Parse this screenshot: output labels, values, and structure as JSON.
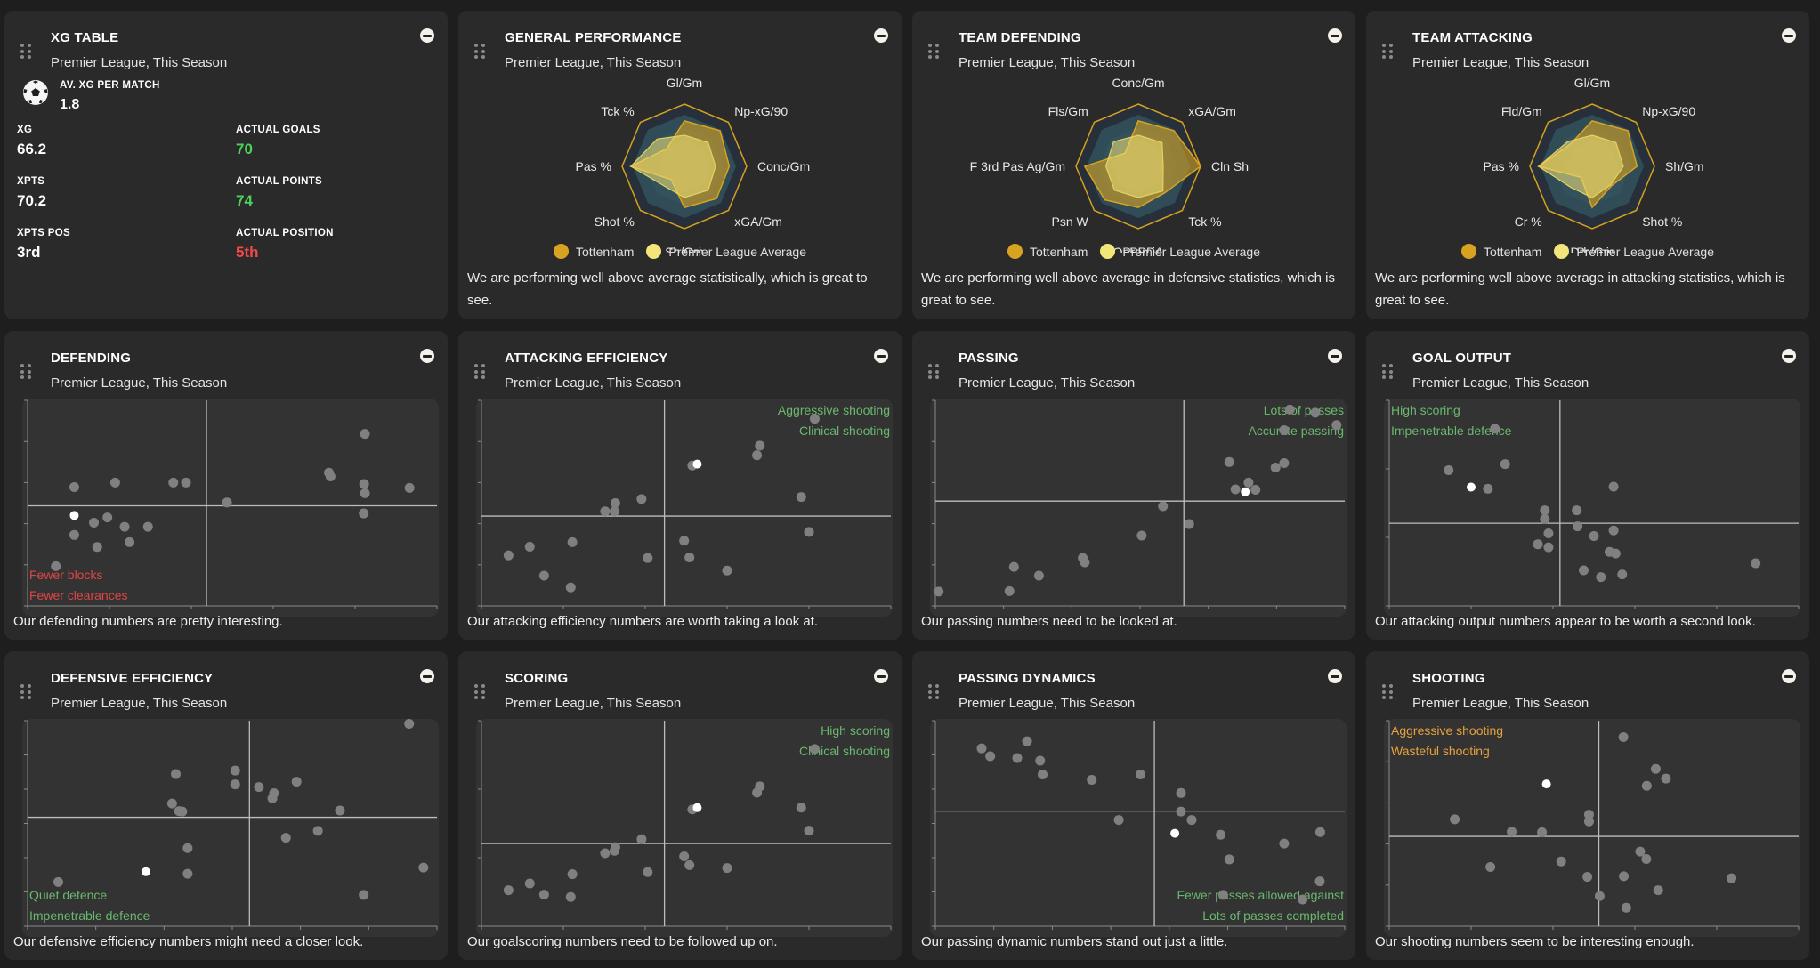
{
  "colors": {
    "team": "#d8a321",
    "average": "#f3e57a",
    "good": "#4cd25a",
    "bad": "#f04a4a",
    "quadrant_good": "#6ab86e",
    "quadrant_bad": "#e04545",
    "quadrant_warn": "#e6a23c",
    "dot": "#808080",
    "highlight_dot": "#ffffff"
  },
  "xg_table": {
    "title": "XG TABLE",
    "subtitle": "Premier League, This Season",
    "icon": "football-icon",
    "av_label": "AV. XG PER MATCH",
    "av_value": "1.8",
    "stats": [
      {
        "label": "XG",
        "value": "66.2",
        "tone": "neutral"
      },
      {
        "label": "ACTUAL GOALS",
        "value": "70",
        "tone": "good"
      },
      {
        "label": "XPTS",
        "value": "70.2",
        "tone": "neutral"
      },
      {
        "label": "ACTUAL POINTS",
        "value": "74",
        "tone": "good"
      },
      {
        "label": "XPTS POS",
        "value": "3rd",
        "tone": "neutral"
      },
      {
        "label": "ACTUAL POSITION",
        "value": "5th",
        "tone": "bad"
      }
    ]
  },
  "radars": [
    {
      "title": "GENERAL PERFORMANCE",
      "subtitle": "Premier League, This Season",
      "axes": [
        "Gl/Gm",
        "Np-xG/90",
        "Conc/Gm",
        "xGA/Gm",
        "Sh/Gm",
        "Shot %",
        "Pas %",
        "Tck %"
      ],
      "team": [
        0.73,
        0.81,
        0.72,
        0.73,
        0.66,
        0.3,
        0.86,
        0.4
      ],
      "average": [
        0.5,
        0.54,
        0.5,
        0.54,
        0.5,
        0.45,
        0.86,
        0.62
      ],
      "legend": [
        "Tottenham",
        "Premier League Average"
      ],
      "description": "We are performing well above average statistically, which is great to see."
    },
    {
      "title": "TEAM DEFENDING",
      "subtitle": "Premier League, This Season",
      "axes": [
        "Conc/Gm",
        "xGA/Gm",
        "Cln Sh",
        "Tck %",
        "OpPPDA",
        "Psn W",
        "F 3rd Pas Ag/Gm",
        "Fls/Gm"
      ],
      "team": [
        0.73,
        0.81,
        1.0,
        0.6,
        0.66,
        0.76,
        0.86,
        0.3
      ],
      "average": [
        0.5,
        0.54,
        0.4,
        0.56,
        0.5,
        0.54,
        0.52,
        0.56
      ],
      "legend": [
        "Tottenham",
        "Premier League Average"
      ],
      "description": "We are performing well above average in defensive statistics, which is great to see."
    },
    {
      "title": "TEAM ATTACKING",
      "subtitle": "Premier League, This Season",
      "axes": [
        "Gl/Gm",
        "Np-xG/90",
        "Sh/Gm",
        "Shot %",
        "Drb/Gm",
        "Cr %",
        "Pas %",
        "Fld/Gm"
      ],
      "team": [
        0.73,
        0.81,
        0.72,
        0.44,
        0.66,
        0.25,
        0.86,
        0.5
      ],
      "average": [
        0.5,
        0.54,
        0.5,
        0.42,
        0.5,
        0.48,
        0.86,
        0.56
      ],
      "legend": [
        "Tottenham",
        "Premier League Average"
      ],
      "description": "We are performing well above average in attacking statistics, which is great to see."
    }
  ],
  "scatters": [
    {
      "title": "DEFENDING",
      "subtitle": "Premier League, This Season",
      "quadrant_labels": [
        "Fewer blocks",
        "Fewer clearances"
      ],
      "quadrant_corner": "bottom-left",
      "quadrant_tone": "bad",
      "xticks": 5,
      "yticks": 5,
      "divider": [
        0.437,
        0.487
      ],
      "points": [
        [
          0.114,
          0.578
        ],
        [
          0.114,
          0.345
        ],
        [
          0.162,
          0.405
        ],
        [
          0.17,
          0.287
        ],
        [
          0.195,
          0.43
        ],
        [
          0.214,
          0.6
        ],
        [
          0.237,
          0.385
        ],
        [
          0.249,
          0.31
        ],
        [
          0.294,
          0.385
        ],
        [
          0.356,
          0.6
        ],
        [
          0.387,
          0.6
        ],
        [
          0.487,
          0.503
        ],
        [
          0.069,
          0.193
        ],
        [
          0.736,
          0.648
        ],
        [
          0.74,
          0.63
        ],
        [
          0.822,
          0.593
        ],
        [
          0.824,
          0.548
        ],
        [
          0.824,
          0.837
        ],
        [
          0.821,
          0.45
        ],
        [
          0.933,
          0.574
        ]
      ],
      "highlight": [
        0.114,
        0.44
      ],
      "description": "Our defending numbers are pretty interesting."
    },
    {
      "title": "ATTACKING EFFICIENCY",
      "subtitle": "Premier League, This Season",
      "quadrant_labels": [
        "Aggressive shooting",
        "Clinical shooting"
      ],
      "quadrant_corner": "top-right",
      "quadrant_tone": "good",
      "xticks": 5,
      "yticks": 5,
      "divider": [
        0.447,
        0.437
      ],
      "points": [
        [
          0.066,
          0.246
        ],
        [
          0.118,
          0.288
        ],
        [
          0.153,
          0.147
        ],
        [
          0.222,
          0.31
        ],
        [
          0.218,
          0.09
        ],
        [
          0.302,
          0.46
        ],
        [
          0.325,
          0.46
        ],
        [
          0.327,
          0.5
        ],
        [
          0.391,
          0.52
        ],
        [
          0.406,
          0.233
        ],
        [
          0.495,
          0.317
        ],
        [
          0.508,
          0.236
        ],
        [
          0.6,
          0.172
        ],
        [
          0.515,
          0.683
        ],
        [
          0.673,
          0.733
        ],
        [
          0.68,
          0.78
        ],
        [
          0.781,
          0.53
        ],
        [
          0.8,
          0.36
        ],
        [
          0.814,
          0.91
        ]
      ],
      "highlight": [
        0.527,
        0.69
      ],
      "description": "Our attacking efficiency numbers are worth taking a look at."
    },
    {
      "title": "PASSING",
      "subtitle": "Premier League, This Season",
      "quadrant_labels": [
        "Lots of passes",
        "Accurate passing"
      ],
      "quadrant_corner": "top-right",
      "quadrant_tone": "good",
      "xticks": 6,
      "yticks": 5,
      "divider": [
        0.607,
        0.51
      ],
      "points": [
        [
          0.008,
          0.07
        ],
        [
          0.181,
          0.072
        ],
        [
          0.192,
          0.19
        ],
        [
          0.253,
          0.147
        ],
        [
          0.36,
          0.233
        ],
        [
          0.365,
          0.212
        ],
        [
          0.504,
          0.342
        ],
        [
          0.556,
          0.485
        ],
        [
          0.62,
          0.398
        ],
        [
          0.718,
          0.7
        ],
        [
          0.733,
          0.567
        ],
        [
          0.765,
          0.6
        ],
        [
          0.782,
          0.565
        ],
        [
          0.831,
          0.673
        ],
        [
          0.852,
          0.695
        ],
        [
          0.852,
          0.855
        ],
        [
          0.866,
          0.955
        ],
        [
          0.928,
          0.94
        ],
        [
          0.98,
          0.88
        ]
      ],
      "highlight": [
        0.757,
        0.555
      ],
      "description": "Our passing numbers need to be looked at."
    },
    {
      "title": "GOAL OUTPUT",
      "subtitle": "Premier League, This Season",
      "quadrant_labels": [
        "High scoring",
        "Impenetrable defence"
      ],
      "quadrant_corner": "top-left",
      "quadrant_tone": "good",
      "xticks": 5,
      "yticks": 3,
      "divider": [
        0.417,
        0.402
      ],
      "points": [
        [
          0.258,
          0.862
        ],
        [
          0.145,
          0.66
        ],
        [
          0.283,
          0.69
        ],
        [
          0.241,
          0.57
        ],
        [
          0.38,
          0.465
        ],
        [
          0.38,
          0.422
        ],
        [
          0.389,
          0.353
        ],
        [
          0.363,
          0.3
        ],
        [
          0.389,
          0.285
        ],
        [
          0.46,
          0.387
        ],
        [
          0.458,
          0.465
        ],
        [
          0.5,
          0.34
        ],
        [
          0.548,
          0.367
        ],
        [
          0.548,
          0.58
        ],
        [
          0.538,
          0.263
        ],
        [
          0.553,
          0.255
        ],
        [
          0.475,
          0.173
        ],
        [
          0.517,
          0.14
        ],
        [
          0.569,
          0.153
        ],
        [
          0.895,
          0.208
        ]
      ],
      "highlight": [
        0.2,
        0.578
      ],
      "description": "Our attacking output numbers appear to be worth a second look."
    },
    {
      "title": "DEFENSIVE EFFICIENCY",
      "subtitle": "Premier League, This Season",
      "quadrant_labels": [
        "Quiet defence",
        "Impenetrable defence"
      ],
      "quadrant_corner": "bottom-left",
      "quadrant_tone": "good",
      "xticks": 6,
      "yticks": 6,
      "divider": [
        0.542,
        0.53
      ],
      "points": [
        [
          0.075,
          0.215
        ],
        [
          0.362,
          0.74
        ],
        [
          0.353,
          0.597
        ],
        [
          0.37,
          0.56
        ],
        [
          0.378,
          0.558
        ],
        [
          0.391,
          0.38
        ],
        [
          0.391,
          0.255
        ],
        [
          0.507,
          0.757
        ],
        [
          0.507,
          0.69
        ],
        [
          0.565,
          0.677
        ],
        [
          0.602,
          0.647
        ],
        [
          0.598,
          0.622
        ],
        [
          0.657,
          0.703
        ],
        [
          0.631,
          0.43
        ],
        [
          0.709,
          0.464
        ],
        [
          0.763,
          0.563
        ],
        [
          0.821,
          0.152
        ],
        [
          0.932,
          0.985
        ],
        [
          0.967,
          0.285
        ]
      ],
      "highlight": [
        0.289,
        0.265
      ],
      "description": "Our defensive efficiency numbers might need a closer look."
    },
    {
      "title": "SCORING",
      "subtitle": "Premier League, This Season",
      "quadrant_labels": [
        "High scoring",
        "Clinical shooting"
      ],
      "quadrant_corner": "top-right",
      "quadrant_tone": "good",
      "xticks": 5,
      "yticks": 3,
      "divider": [
        0.447,
        0.402
      ],
      "points": [
        [
          0.066,
          0.175
        ],
        [
          0.118,
          0.208
        ],
        [
          0.153,
          0.153
        ],
        [
          0.222,
          0.253
        ],
        [
          0.218,
          0.142
        ],
        [
          0.302,
          0.355
        ],
        [
          0.325,
          0.367
        ],
        [
          0.327,
          0.385
        ],
        [
          0.391,
          0.423
        ],
        [
          0.406,
          0.263
        ],
        [
          0.495,
          0.34
        ],
        [
          0.508,
          0.297
        ],
        [
          0.6,
          0.283
        ],
        [
          0.515,
          0.568
        ],
        [
          0.673,
          0.65
        ],
        [
          0.68,
          0.68
        ],
        [
          0.781,
          0.577
        ],
        [
          0.8,
          0.465
        ],
        [
          0.814,
          0.862
        ]
      ],
      "highlight": [
        0.527,
        0.577
      ],
      "description": "Our goalscoring numbers need to be followed up on."
    },
    {
      "title": "PASSING DYNAMICS",
      "subtitle": "Premier League, This Season",
      "quadrant_labels": [
        "Fewer passes allowed against",
        "Lots of passes completed"
      ],
      "quadrant_corner": "bottom-right",
      "quadrant_tone": "good",
      "xticks": 7,
      "yticks": 6,
      "divider": [
        0.535,
        0.56
      ],
      "points": [
        [
          0.113,
          0.865
        ],
        [
          0.134,
          0.827
        ],
        [
          0.2,
          0.818
        ],
        [
          0.224,
          0.9
        ],
        [
          0.256,
          0.805
        ],
        [
          0.262,
          0.738
        ],
        [
          0.382,
          0.712
        ],
        [
          0.501,
          0.738
        ],
        [
          0.448,
          0.517
        ],
        [
          0.6,
          0.648
        ],
        [
          0.6,
          0.558
        ],
        [
          0.626,
          0.517
        ],
        [
          0.697,
          0.445
        ],
        [
          0.718,
          0.325
        ],
        [
          0.852,
          0.402
        ],
        [
          0.94,
          0.458
        ],
        [
          0.939,
          0.218
        ],
        [
          0.703,
          0.152
        ],
        [
          0.897,
          0.13
        ]
      ],
      "highlight": [
        0.585,
        0.452
      ],
      "description": "Our passing dynamic numbers stand out just a little."
    },
    {
      "title": "SHOOTING",
      "subtitle": "Premier League, This Season",
      "quadrant_labels": [
        "Aggressive shooting",
        "Wasteful shooting"
      ],
      "quadrant_corner": "top-left",
      "quadrant_tone": "warn",
      "xticks": 5,
      "yticks": 5,
      "divider": [
        0.512,
        0.437
      ],
      "points": [
        [
          0.16,
          0.52
        ],
        [
          0.247,
          0.288
        ],
        [
          0.299,
          0.46
        ],
        [
          0.373,
          0.457
        ],
        [
          0.42,
          0.315
        ],
        [
          0.488,
          0.543
        ],
        [
          0.488,
          0.51
        ],
        [
          0.484,
          0.24
        ],
        [
          0.514,
          0.146
        ],
        [
          0.572,
          0.92
        ],
        [
          0.573,
          0.243
        ],
        [
          0.613,
          0.363
        ],
        [
          0.628,
          0.327
        ],
        [
          0.629,
          0.683
        ],
        [
          0.651,
          0.765
        ],
        [
          0.676,
          0.718
        ],
        [
          0.657,
          0.175
        ],
        [
          0.579,
          0.09
        ],
        [
          0.836,
          0.233
        ]
      ],
      "highlight": [
        0.384,
        0.692
      ],
      "description": "Our shooting numbers seem to be interesting enough."
    }
  ]
}
